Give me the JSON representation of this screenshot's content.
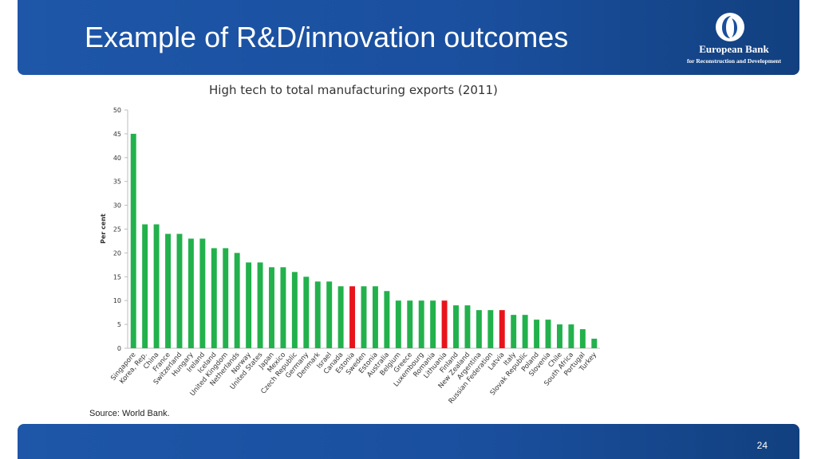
{
  "slide": {
    "title": "Example of R&D/innovation outcomes",
    "source": "Source: World Bank.",
    "page_number": "24"
  },
  "logo": {
    "name": "European Bank",
    "subtitle": "for Reconstruction and Development"
  },
  "colors": {
    "header": "#1a4f9e",
    "bar_default": "#22b14c",
    "bar_highlight": "#e8141c"
  },
  "chart_data": {
    "type": "bar",
    "title": "High tech to total manufacturing exports (2011)",
    "xlabel": "",
    "ylabel": "Per cent",
    "ylim": [
      0,
      50
    ],
    "yticks": [
      0,
      5,
      10,
      15,
      20,
      25,
      30,
      35,
      40,
      45,
      50
    ],
    "grid": false,
    "categories": [
      "Singapore",
      "Korea, Rep.",
      "China",
      "France",
      "Switzerland",
      "Hungary",
      "Ireland",
      "Iceland",
      "United Kingdom",
      "Netherlands",
      "Norway",
      "United States",
      "Japan",
      "Mexico",
      "Czech Republic",
      "Germany",
      "Denmark",
      "Israel",
      "Canada",
      "Estonia",
      "Sweden",
      "Estonia",
      "Australia",
      "Belgium",
      "Greece",
      "Luxembourg",
      "Romania",
      "Lithuania",
      "Finland",
      "New Zealand",
      "Argentina",
      "Russian Federation",
      "Latvia",
      "Italy",
      "Slovak Republic",
      "Poland",
      "Slovenia",
      "Chile",
      "South Africa",
      "Portugal",
      "Turkey"
    ],
    "values": [
      45,
      26,
      26,
      24,
      24,
      23,
      23,
      21,
      21,
      20,
      18,
      18,
      17,
      17,
      16,
      15,
      14,
      14,
      13,
      13,
      13,
      13,
      12,
      10,
      10,
      10,
      10,
      10,
      9,
      9,
      8,
      8,
      8,
      7,
      7,
      6,
      6,
      5,
      5,
      4,
      2
    ],
    "highlighted": [
      "Estonia",
      "Lithuania",
      "Latvia"
    ]
  }
}
